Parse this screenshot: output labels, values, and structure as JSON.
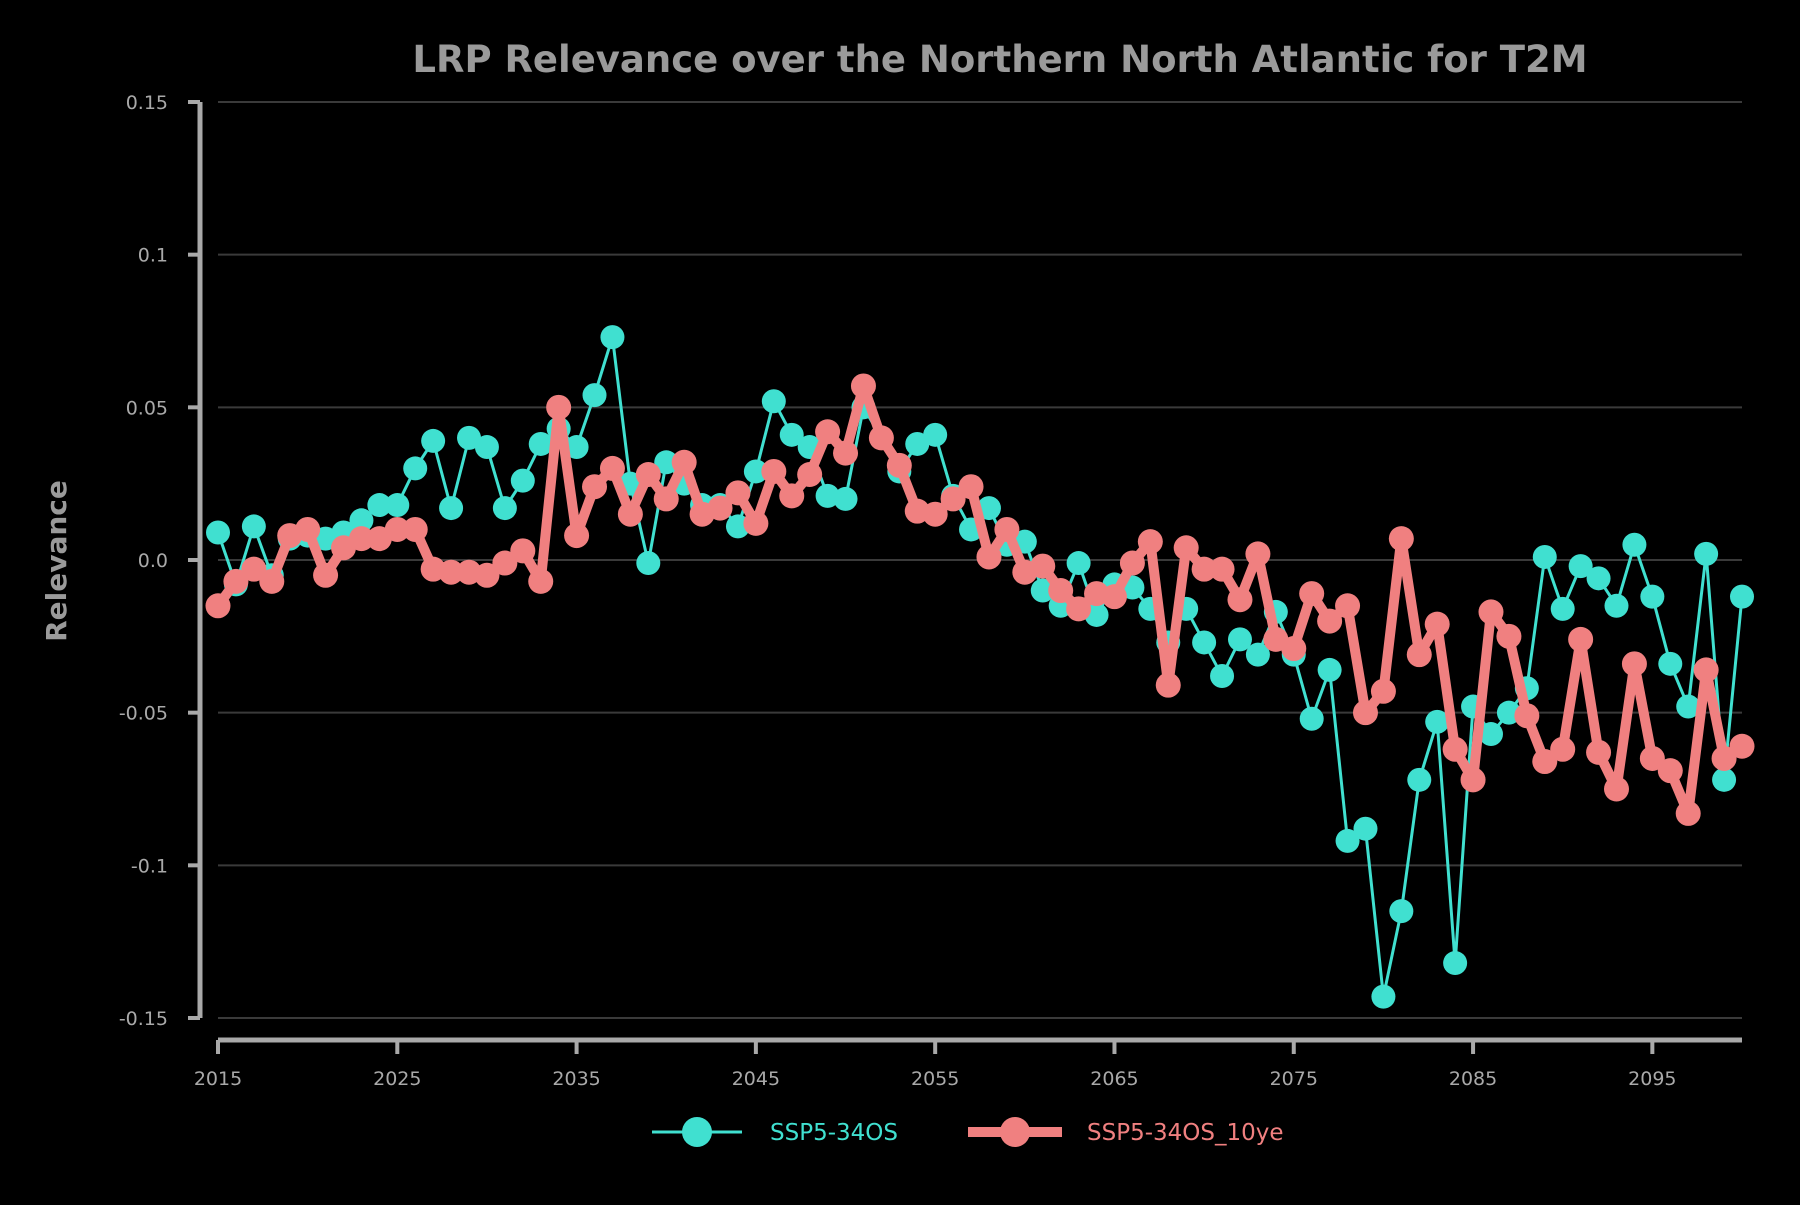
{
  "chart_data": {
    "type": "line",
    "title": "LRP Relevance over the Northern North Atlantic for T2M",
    "xlabel": "",
    "ylabel": "Relevance",
    "xlim": [
      2015,
      2100
    ],
    "ylim": [
      -0.15,
      0.15
    ],
    "y_ticks": [
      0.15,
      0.1,
      0.05,
      0.0,
      -0.05,
      -0.1,
      -0.15
    ],
    "y_tick_labels": [
      "0.15",
      "0.1",
      "0.05",
      "0.0",
      "-0.05",
      "-0.1",
      "-0.15"
    ],
    "x_ticks": [
      2015,
      2025,
      2035,
      2045,
      2055,
      2065,
      2075,
      2085,
      2095
    ],
    "x_tick_labels": [
      "2015",
      "2025",
      "2035",
      "2045",
      "2055",
      "2065",
      "2075",
      "2085",
      "2095"
    ],
    "grid": "horizontal",
    "legend_position": "bottom-center",
    "x": [
      2015,
      2016,
      2017,
      2018,
      2019,
      2020,
      2021,
      2022,
      2023,
      2024,
      2025,
      2026,
      2027,
      2028,
      2029,
      2030,
      2031,
      2032,
      2033,
      2034,
      2035,
      2036,
      2037,
      2038,
      2039,
      2040,
      2041,
      2042,
      2043,
      2044,
      2045,
      2046,
      2047,
      2048,
      2049,
      2050,
      2051,
      2052,
      2053,
      2054,
      2055,
      2056,
      2057,
      2058,
      2059,
      2060,
      2061,
      2062,
      2063,
      2064,
      2065,
      2066,
      2067,
      2068,
      2069,
      2070,
      2071,
      2072,
      2073,
      2074,
      2075,
      2076,
      2077,
      2078,
      2079,
      2080,
      2081,
      2082,
      2083,
      2084,
      2085,
      2086,
      2087,
      2088,
      2089,
      2090,
      2091,
      2092,
      2093,
      2094,
      2095,
      2096,
      2097,
      2098,
      2099,
      2100
    ],
    "series": [
      {
        "name": "SSP5-34OS",
        "color": "#40e0d0",
        "values": [
          0.009,
          -0.008,
          0.011,
          -0.005,
          0.007,
          0.008,
          0.007,
          0.009,
          0.013,
          0.018,
          0.018,
          0.03,
          0.039,
          0.017,
          0.04,
          0.037,
          0.017,
          0.026,
          0.038,
          0.043,
          0.037,
          0.054,
          0.073,
          0.025,
          -0.001,
          0.032,
          0.025,
          0.018,
          0.018,
          0.011,
          0.029,
          0.052,
          0.041,
          0.037,
          0.021,
          0.02,
          0.05,
          0.04,
          0.029,
          0.038,
          0.041,
          0.021,
          0.01,
          0.017,
          0.005,
          0.006,
          -0.01,
          -0.015,
          -0.001,
          -0.018,
          -0.008,
          -0.009,
          -0.016,
          -0.027,
          -0.016,
          -0.027,
          -0.038,
          -0.026,
          -0.031,
          -0.017,
          -0.031,
          -0.052,
          -0.036,
          -0.092,
          -0.088,
          -0.143,
          -0.115,
          -0.072,
          -0.053,
          -0.132,
          -0.048,
          -0.057,
          -0.05,
          -0.042,
          0.001,
          -0.016,
          -0.002,
          -0.006,
          -0.015,
          0.005,
          -0.012,
          -0.034,
          -0.048,
          0.002,
          -0.072,
          -0.012
        ]
      },
      {
        "name": "SSP5-34OS_10ye",
        "color": "#f08080",
        "values": [
          -0.015,
          -0.007,
          -0.003,
          -0.007,
          0.008,
          0.01,
          -0.005,
          0.004,
          0.007,
          0.007,
          0.01,
          0.01,
          -0.003,
          -0.004,
          -0.004,
          -0.005,
          -0.001,
          0.003,
          -0.007,
          0.05,
          0.008,
          0.024,
          0.03,
          0.015,
          0.028,
          0.02,
          0.032,
          0.015,
          0.017,
          0.022,
          0.012,
          0.029,
          0.021,
          0.028,
          0.042,
          0.035,
          0.057,
          0.04,
          0.031,
          0.016,
          0.015,
          0.02,
          0.024,
          0.001,
          0.01,
          -0.004,
          -0.002,
          -0.01,
          -0.016,
          -0.011,
          -0.012,
          -0.001,
          0.006,
          -0.041,
          0.004,
          -0.003,
          -0.003,
          -0.013,
          0.002,
          -0.026,
          -0.029,
          -0.011,
          -0.02,
          -0.015,
          -0.05,
          -0.043,
          0.007,
          -0.031,
          -0.021,
          -0.062,
          -0.072,
          -0.017,
          -0.025,
          -0.051,
          -0.066,
          -0.062,
          -0.026,
          -0.063,
          -0.075,
          -0.034,
          -0.065,
          -0.069,
          -0.083,
          -0.036,
          -0.065,
          -0.061
        ]
      }
    ]
  }
}
